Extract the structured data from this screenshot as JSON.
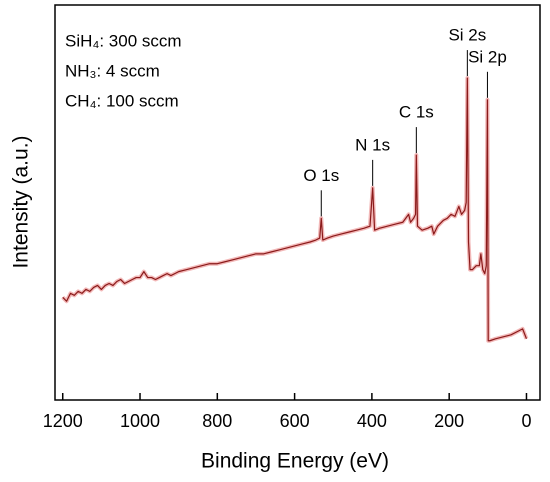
{
  "chart_data": {
    "type": "line",
    "xlabel": "Binding Energy (eV)",
    "ylabel": "Intensity (a.u.)",
    "notes": [
      "SiH₄: 300 sccm",
      "NH₃: 4 sccm",
      "CH₄: 100 sccm"
    ],
    "xlim": [
      1220,
      -35
    ],
    "ylim": [
      0,
      100
    ],
    "xticks": [
      1200,
      1000,
      800,
      600,
      400,
      200,
      0
    ],
    "series": [
      {
        "color": "#8b1a1a",
        "x": [
          1200,
          1190,
          1180,
          1170,
          1160,
          1150,
          1140,
          1130,
          1120,
          1110,
          1100,
          1090,
          1080,
          1070,
          1060,
          1050,
          1040,
          1030,
          1020,
          1010,
          1000,
          990,
          980,
          970,
          960,
          950,
          940,
          930,
          920,
          910,
          900,
          880,
          860,
          840,
          820,
          800,
          780,
          760,
          740,
          720,
          700,
          680,
          660,
          640,
          620,
          600,
          580,
          560,
          545,
          535,
          531,
          527,
          515,
          500,
          480,
          460,
          440,
          420,
          405,
          398,
          393,
          380,
          360,
          340,
          320,
          305,
          300,
          292,
          287,
          285,
          282,
          270,
          255,
          245,
          240,
          230,
          215,
          205,
          195,
          185,
          175,
          168,
          160,
          156,
          153,
          150,
          146,
          140,
          130,
          122,
          118,
          113,
          108,
          104,
          101,
          99,
          95,
          80,
          60,
          40,
          20,
          10,
          0
        ],
        "values": [
          26,
          25,
          27,
          26.5,
          27.5,
          27,
          28,
          27.5,
          28.5,
          29,
          28,
          29,
          29.5,
          29,
          30,
          30.5,
          29.5,
          30,
          30.5,
          31,
          31,
          32.5,
          31,
          31,
          30.5,
          31,
          31.5,
          32,
          31.5,
          32,
          32.5,
          33,
          33.5,
          34,
          34.5,
          34.5,
          35,
          35.5,
          36,
          36.5,
          37,
          37,
          37.5,
          38,
          38.5,
          39,
          39.5,
          40,
          40.5,
          41,
          46,
          40.5,
          41,
          41.5,
          42,
          42.5,
          43,
          43.5,
          44,
          53.7,
          43,
          43.5,
          44,
          44.5,
          45,
          47,
          45,
          46,
          47,
          62,
          44,
          43,
          43.5,
          44,
          42,
          44,
          45.5,
          46,
          47,
          46.5,
          49,
          47,
          48,
          50,
          81.5,
          40,
          33,
          33,
          34,
          34,
          37,
          33,
          32,
          34,
          76,
          15,
          15,
          15.5,
          16,
          16.5,
          17.5,
          18,
          15.5
        ]
      }
    ],
    "annotations": [
      {
        "text": "O 1s",
        "x": 531,
        "y": 46
      },
      {
        "text": "N 1s",
        "x": 398,
        "y": 53.7
      },
      {
        "text": "C 1s",
        "x": 285,
        "y": 62
      },
      {
        "text": "Si 2s",
        "x": 153,
        "y": 81.5
      },
      {
        "text": "Si 2p",
        "x": 101,
        "y": 76
      }
    ]
  }
}
